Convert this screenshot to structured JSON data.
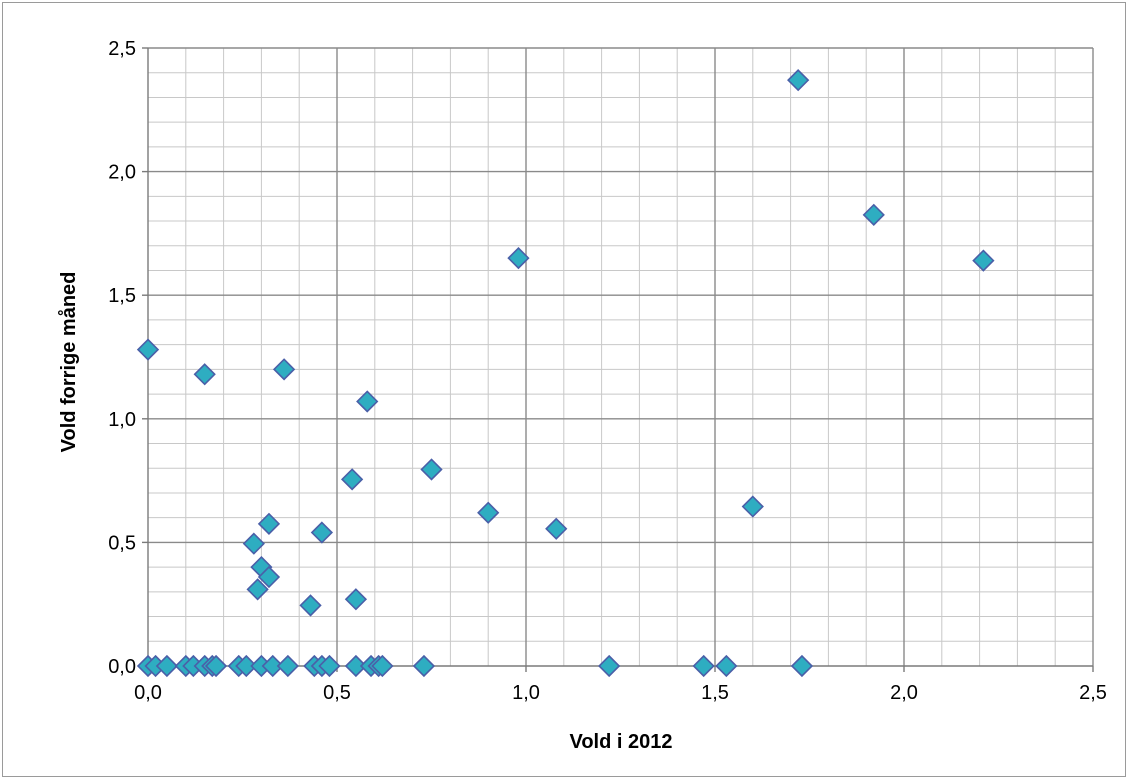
{
  "chart_data": {
    "type": "scatter",
    "title": "",
    "xlabel": "Vold i 2012",
    "ylabel": "Vold forrige måned",
    "xlim": [
      0,
      2.5
    ],
    "ylim": [
      0,
      2.5
    ],
    "major_step": 0.5,
    "minor_step": 0.1,
    "grid": true,
    "legend": "none",
    "marker": "diamond",
    "marker_color": "#2EADC1",
    "marker_edge_color": "#4A5FA8",
    "x_tick_labels": [
      "0,0",
      "0,5",
      "1,0",
      "1,5",
      "2,0",
      "2,5"
    ],
    "y_tick_labels": [
      "0,0",
      "0,5",
      "1,0",
      "1,5",
      "2,0",
      "2,5"
    ],
    "points": [
      [
        0.0,
        1.28
      ],
      [
        0.15,
        1.18
      ],
      [
        0.36,
        1.2
      ],
      [
        0.58,
        1.07
      ],
      [
        0.54,
        0.755
      ],
      [
        0.75,
        0.795
      ],
      [
        0.9,
        0.62
      ],
      [
        1.08,
        0.555
      ],
      [
        1.6,
        0.645
      ],
      [
        0.98,
        1.65
      ],
      [
        1.72,
        2.37
      ],
      [
        1.92,
        1.825
      ],
      [
        2.21,
        1.64
      ],
      [
        0.28,
        0.495
      ],
      [
        0.32,
        0.575
      ],
      [
        0.46,
        0.54
      ],
      [
        0.3,
        0.4
      ],
      [
        0.32,
        0.36
      ],
      [
        0.29,
        0.31
      ],
      [
        0.43,
        0.245
      ],
      [
        0.55,
        0.27
      ],
      [
        0.0,
        0.0
      ],
      [
        0.02,
        0.0
      ],
      [
        0.05,
        0.0
      ],
      [
        0.1,
        0.0
      ],
      [
        0.12,
        0.0
      ],
      [
        0.15,
        0.0
      ],
      [
        0.17,
        0.0
      ],
      [
        0.18,
        0.0
      ],
      [
        0.24,
        0.0
      ],
      [
        0.26,
        0.0
      ],
      [
        0.3,
        0.0
      ],
      [
        0.33,
        0.0
      ],
      [
        0.37,
        0.0
      ],
      [
        0.44,
        0.0
      ],
      [
        0.46,
        0.0
      ],
      [
        0.48,
        0.0
      ],
      [
        0.55,
        0.0
      ],
      [
        0.59,
        0.0
      ],
      [
        0.61,
        0.0
      ],
      [
        0.62,
        0.0
      ],
      [
        0.73,
        0.0
      ],
      [
        1.22,
        0.0
      ],
      [
        1.47,
        0.0
      ],
      [
        1.53,
        0.0
      ],
      [
        1.73,
        0.0
      ]
    ]
  }
}
